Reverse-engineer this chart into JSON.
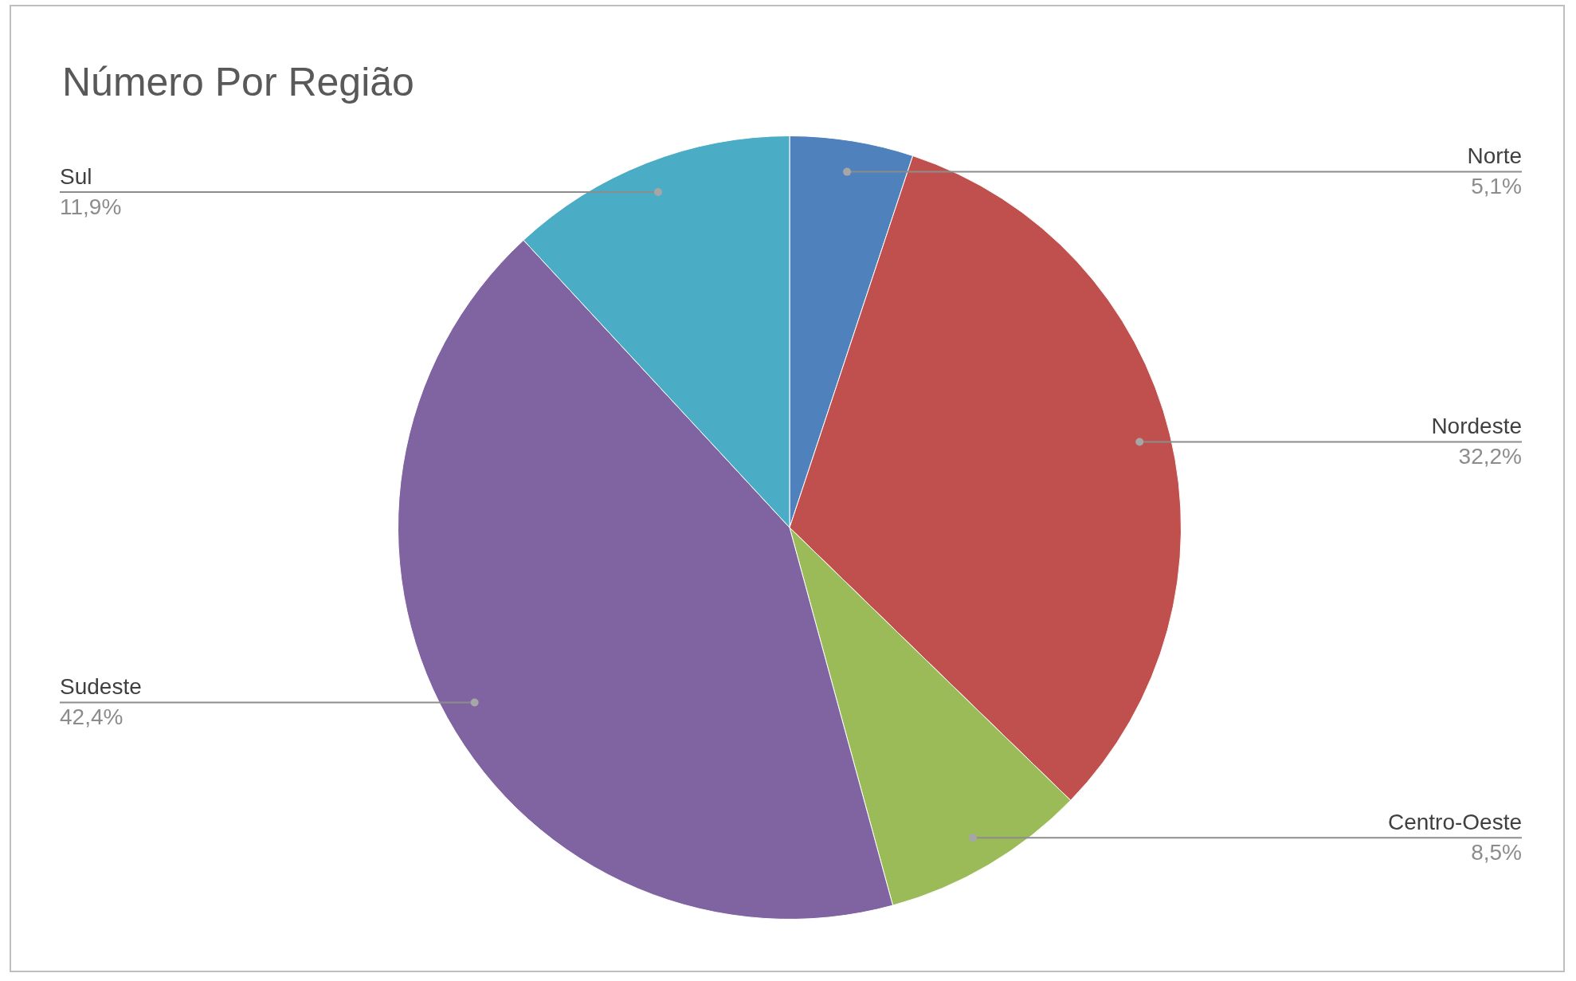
{
  "chart_data": {
    "type": "pie",
    "title": "Número Por Região",
    "categories": [
      "Norte",
      "Nordeste",
      "Centro-Oeste",
      "Sudeste",
      "Sul"
    ],
    "values": [
      5.1,
      32.2,
      8.5,
      42.4,
      11.9
    ],
    "colors": [
      "#4f81bd",
      "#c0504d",
      "#9bbb59",
      "#8064a2",
      "#4bacc6"
    ],
    "value_labels": [
      "5,1%",
      "32,2%",
      "8,5%",
      "42,4%",
      "11,9%"
    ],
    "legend": false
  }
}
